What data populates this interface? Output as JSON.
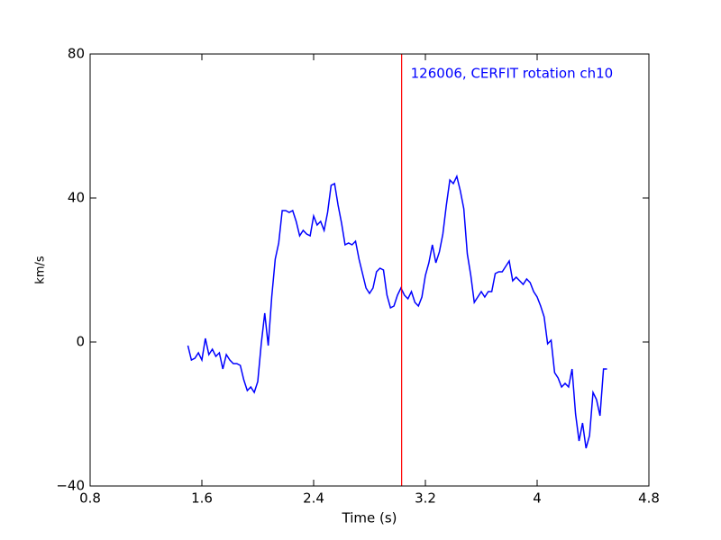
{
  "chart_data": {
    "type": "line",
    "xlabel": "Time (s)",
    "ylabel": "km/s",
    "annotation": "126006, CERFIT rotation ch10",
    "annotation_color": "#0000ff",
    "vline": {
      "x": 3.03,
      "color": "#ff0000"
    },
    "x": [
      1.5,
      1.525,
      1.55,
      1.575,
      1.6,
      1.625,
      1.65,
      1.675,
      1.7,
      1.725,
      1.75,
      1.775,
      1.8,
      1.825,
      1.85,
      1.875,
      1.9,
      1.925,
      1.95,
      1.975,
      2.0,
      2.025,
      2.05,
      2.075,
      2.1,
      2.125,
      2.15,
      2.175,
      2.2,
      2.225,
      2.25,
      2.275,
      2.3,
      2.325,
      2.35,
      2.375,
      2.4,
      2.425,
      2.45,
      2.475,
      2.5,
      2.525,
      2.55,
      2.575,
      2.6,
      2.625,
      2.65,
      2.675,
      2.7,
      2.725,
      2.75,
      2.775,
      2.8,
      2.825,
      2.85,
      2.875,
      2.9,
      2.925,
      2.95,
      2.975,
      3.0,
      3.025,
      3.05,
      3.075,
      3.1,
      3.125,
      3.15,
      3.175,
      3.2,
      3.225,
      3.25,
      3.275,
      3.3,
      3.325,
      3.35,
      3.375,
      3.4,
      3.425,
      3.45,
      3.475,
      3.5,
      3.525,
      3.55,
      3.575,
      3.6,
      3.625,
      3.65,
      3.675,
      3.7,
      3.725,
      3.75,
      3.775,
      3.8,
      3.825,
      3.85,
      3.875,
      3.9,
      3.925,
      3.95,
      3.975,
      4.0,
      4.025,
      4.05,
      4.075,
      4.1,
      4.125,
      4.15,
      4.175,
      4.2,
      4.225,
      4.25,
      4.275,
      4.3,
      4.325,
      4.35,
      4.375,
      4.4,
      4.425,
      4.45,
      4.475,
      4.5
    ],
    "series": [
      {
        "name": "ch10",
        "color": "#0000ff",
        "values": [
          -1,
          -5,
          -4.5,
          -3,
          -5,
          1,
          -3.5,
          -2,
          -4,
          -3,
          -7.5,
          -3.5,
          -5,
          -6,
          -6,
          -6.5,
          -10.5,
          -13.5,
          -12.5,
          -14,
          -11,
          -0.5,
          8,
          -1,
          12.5,
          23,
          27.5,
          36.5,
          36.5,
          36,
          36.5,
          33.5,
          29.5,
          31,
          30,
          29.5,
          35,
          32.5,
          33.5,
          31,
          36,
          43.5,
          44,
          38,
          33,
          27,
          27.5,
          27,
          28,
          23,
          19,
          15,
          13.5,
          15,
          19.5,
          20.5,
          20,
          13,
          9.5,
          10,
          13,
          15,
          13,
          12,
          14,
          11,
          10,
          12.5,
          18.5,
          22,
          27,
          22,
          25,
          30,
          38,
          45,
          44,
          46,
          42,
          37,
          24.5,
          18.5,
          11,
          12.5,
          14,
          12.5,
          14,
          14,
          19,
          19.5,
          19.5,
          21,
          22.5,
          17,
          18,
          17,
          16,
          17.5,
          16.5,
          14,
          12.5,
          10,
          7,
          -0.5,
          0.5,
          -8.5,
          -10,
          -12.5,
          -11.5,
          -12.5,
          -7.5,
          -20,
          -27.5,
          -22.5,
          -29.5,
          -26,
          -14,
          -16,
          -20.5,
          -7.5,
          -7.5
        ]
      }
    ],
    "xlim": [
      0.8,
      4.8
    ],
    "xticks": [
      0.8,
      1.6,
      2.4,
      3.2,
      4.0,
      4.8
    ],
    "ylim": [
      -40,
      80
    ],
    "yticks": [
      {
        "value": -40,
        "label": "−40"
      },
      0,
      40,
      80
    ],
    "grid": false
  }
}
